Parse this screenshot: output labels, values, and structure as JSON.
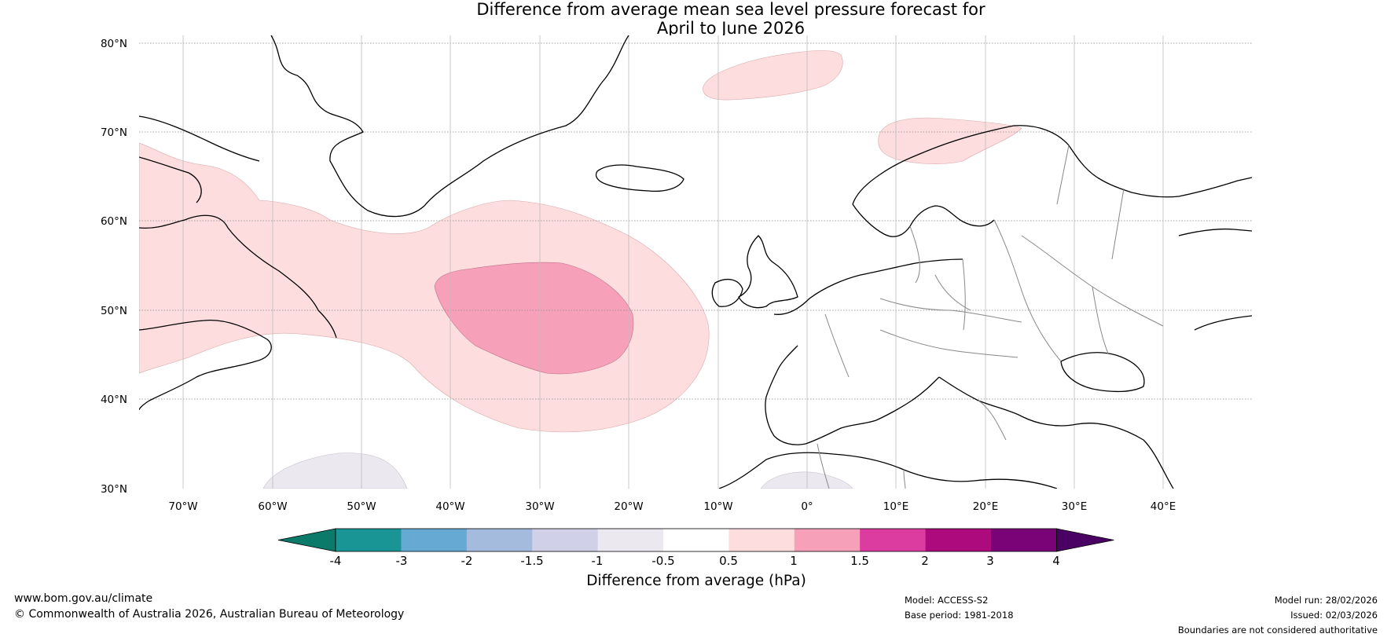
{
  "title": {
    "line1": "Difference from average mean sea level pressure forecast for",
    "line2": "April to June 2026"
  },
  "axes": {
    "latitudes": [
      "80°N",
      "70°N",
      "60°N",
      "50°N",
      "40°N",
      "30°N"
    ],
    "longitudes": [
      "70°W",
      "60°W",
      "50°W",
      "40°W",
      "30°W",
      "20°W",
      "10°W",
      "0°",
      "10°E",
      "20°E",
      "30°E",
      "40°E"
    ]
  },
  "colorbar": {
    "title": "Difference from average (hPa)",
    "ticks": [
      "-4",
      "-3",
      "-2",
      "-1.5",
      "-1",
      "-0.5",
      "0.5",
      "1",
      "1.5",
      "2",
      "3",
      "4"
    ],
    "colors": [
      "#0c7a6a",
      "#1a9596",
      "#66a9d2",
      "#a4bbde",
      "#d0d1e8",
      "#ece8f0",
      "#ffffff",
      "#fdddde",
      "#f7a0ba",
      "#dc3b9f",
      "#ad0b7d",
      "#7a0477",
      "#4b0063"
    ]
  },
  "anomalies": [
    {
      "label": "0.5 to 1 hPa",
      "color": "#fdddde"
    },
    {
      "label": "1 to 1.5 hPa",
      "color": "#f7a0ba"
    },
    {
      "label": "-1 to -0.5 hPa",
      "color": "#ece8f0"
    }
  ],
  "footer": {
    "website": "www.bom.gov.au/climate",
    "copyright": "© Commonwealth of Australia 2026, Australian Bureau of Meteorology",
    "model": "Model: ACCESS-S2",
    "base_period": "Base period: 1981-2018",
    "model_run": "Model run: 28/02/2026",
    "issued": "Issued: 02/03/2026",
    "disclaimer": "Boundaries are not considered authoritative"
  }
}
